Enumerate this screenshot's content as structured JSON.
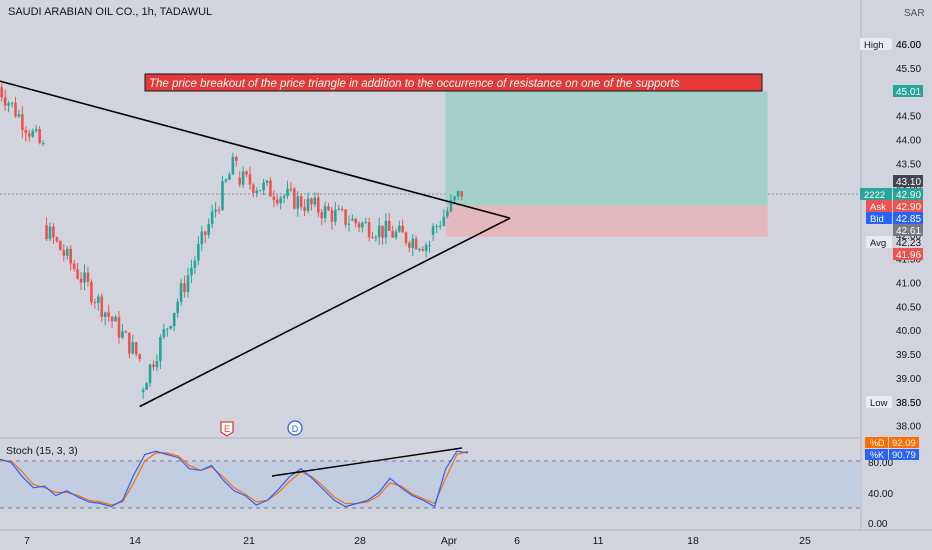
{
  "header": {
    "symbol_title": "SAUDI ARABIAN OIL CO., 1h, TADAWUL",
    "currency": "SAR"
  },
  "annotation": {
    "text": "The price breakout of the price triangle in addition to the occurrence of resistance on one of the supports"
  },
  "markers": {
    "earnings": "E",
    "dividend": "D"
  },
  "price_scale": {
    "ticks": [
      "46.00",
      "45.50",
      "45.00",
      "44.50",
      "44.00",
      "43.50",
      "43.00",
      "42.50",
      "42.00",
      "41.50",
      "41.00",
      "40.50",
      "40.00",
      "39.50",
      "39.00",
      "38.50",
      "38.00"
    ],
    "tags": [
      {
        "key": "high",
        "label": "High",
        "value": "46.00"
      },
      {
        "key": "target",
        "label": "",
        "value": "45.01"
      },
      {
        "key": "last_high",
        "label": "",
        "value": "43.10"
      },
      {
        "key": "last",
        "label": "2222",
        "value": "42.90"
      },
      {
        "key": "ask",
        "label": "Ask",
        "value": "42.90"
      },
      {
        "key": "bid",
        "label": "Bid",
        "value": "42.85"
      },
      {
        "key": "stop_top",
        "label": "",
        "value": "42.61"
      },
      {
        "key": "avg",
        "label": "Avg",
        "value": "42.23"
      },
      {
        "key": "stop",
        "label": "",
        "value": "41.96"
      },
      {
        "key": "low",
        "label": "Low",
        "value": "38.50"
      }
    ]
  },
  "indicator": {
    "name": "Stoch (15, 3, 3)",
    "d_label": "%D",
    "d_value": "92.09",
    "k_label": "%K",
    "k_value": "90.79",
    "ticks": [
      "80.00",
      "40.00",
      "0.00"
    ]
  },
  "time_axis": {
    "labels": [
      "7",
      "14",
      "21",
      "28",
      "Apr",
      "6",
      "11",
      "18",
      "25"
    ]
  },
  "colors": {
    "background": "#d1d4dc",
    "up": "#26a69a",
    "down": "#ef5350",
    "target_zone": "#a3d0c9",
    "stop_zone": "#e5b7bf",
    "banner_bg": "#e53935",
    "k_line": "#2962ff",
    "d_line": "#ff6d00"
  },
  "chart_data": {
    "type": "candlestick",
    "title": "SAUDI ARABIAN OIL CO., 1h, TADAWUL",
    "ylim": [
      37.8,
      46.3
    ],
    "x_range": [
      "Mar 5",
      "Apr 28"
    ],
    "trendlines": [
      {
        "name": "upper",
        "from": {
          "x": "Mar 5",
          "y": 45.25
        },
        "to": {
          "x": "Apr 6",
          "y": 42.35
        }
      },
      {
        "name": "lower",
        "from": {
          "x": "Mar 14",
          "y": 38.4
        },
        "to": {
          "x": "Apr 6",
          "y": 42.35
        }
      }
    ],
    "position": {
      "entry": 42.61,
      "target": 45.01,
      "stop": 41.96,
      "from": "Apr 2",
      "to": "Apr 22"
    },
    "segments": [
      {
        "from": "Mar 5",
        "to": "Mar 8",
        "start": 45.2,
        "end": 43.8
      },
      {
        "from": "Mar 8",
        "to": "Mar 14",
        "start": 42.2,
        "end": 39.4
      },
      {
        "from": "Mar 14",
        "to": "Mar 20",
        "start": 38.7,
        "end": 43.6
      },
      {
        "from": "Mar 20",
        "to": "Mar 27",
        "start": 43.2,
        "end": 42.3
      },
      {
        "from": "Mar 27",
        "to": "Apr 1",
        "start": 42.3,
        "end": 41.8
      },
      {
        "from": "Apr 1",
        "to": "Apr 3",
        "start": 42.0,
        "end": 42.9
      }
    ],
    "stochastic": {
      "k": [
        82,
        78,
        60,
        46,
        48,
        36,
        42,
        34,
        28,
        26,
        22,
        30,
        62,
        88,
        92,
        88,
        84,
        70,
        68,
        74,
        56,
        42,
        36,
        24,
        30,
        44,
        60,
        70,
        58,
        44,
        30,
        22,
        26,
        30,
        40,
        58,
        46,
        36,
        30,
        22,
        70,
        92,
        90
      ],
      "d": [
        80,
        80,
        66,
        50,
        46,
        40,
        40,
        36,
        30,
        28,
        24,
        28,
        52,
        80,
        90,
        90,
        86,
        74,
        68,
        72,
        60,
        46,
        38,
        28,
        30,
        40,
        54,
        66,
        60,
        48,
        34,
        26,
        26,
        28,
        36,
        52,
        48,
        38,
        32,
        26,
        58,
        88,
        92
      ],
      "upper_band": 80,
      "lower_band": 20
    }
  }
}
